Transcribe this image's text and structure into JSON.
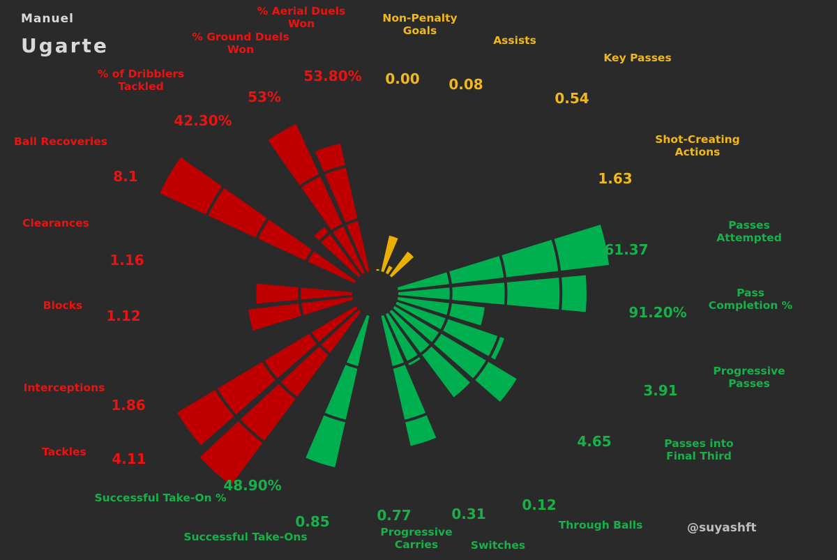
{
  "player": {
    "first_name": "Manuel",
    "last_name": "Ugarte"
  },
  "credit": "@suyashft",
  "colors": {
    "background": "#2a2a2a",
    "defending": "#c00000",
    "attacking": "#e8b000",
    "possession": "#00b050",
    "divider": "#2a2a2a"
  },
  "chart_data": {
    "type": "polar-bar",
    "note_values": "percentile-style radial extent 0-100 estimated from bar lengths; printed values are per-90 stats",
    "ylim": [
      0,
      100
    ],
    "grid": false,
    "series": [
      {
        "group": "defending",
        "color": "#c00000",
        "metrics": [
          {
            "name": "Tackles",
            "value_label": "4.11",
            "extent": 96
          },
          {
            "name": "Interceptions",
            "value_label": "1.86",
            "extent": 100
          },
          {
            "name": "Blocks",
            "value_label": "1.12",
            "extent": 45
          },
          {
            "name": "Clearances",
            "value_label": "1.16",
            "extent": 49
          },
          {
            "name": "Ball Recoveries",
            "value_label": "8.1",
            "extent": 99
          },
          {
            "name": "% of Dribblers\nTackled",
            "value_label": "42.30%",
            "extent": 29
          },
          {
            "name": "% Ground Duels\nWon",
            "value_label": "53%",
            "extent": 76
          },
          {
            "name": "% Aerial Duels\nWon",
            "value_label": "53.80%",
            "extent": 61
          }
        ]
      },
      {
        "group": "attacking",
        "color": "#e8b000",
        "metrics": [
          {
            "name": "Non-Penalty\nGoals",
            "value_label": "0.00",
            "extent": 2
          },
          {
            "name": "Assists",
            "value_label": "0.08",
            "extent": 18
          },
          {
            "name": "Key Passes",
            "value_label": "0.54",
            "extent": 5
          },
          {
            "name": "Shot-Creating\nActions",
            "value_label": "1.63",
            "extent": 15
          }
        ]
      },
      {
        "group": "possession",
        "color": "#00b050",
        "metrics": [
          {
            "name": "Passes\nAttempted",
            "value_label": "61.37",
            "extent": 98
          },
          {
            "name": "Pass\nCompletion %",
            "value_label": "91.20%",
            "extent": 87
          },
          {
            "name": "Progressive\nPasses",
            "value_label": "3.91",
            "extent": 41
          },
          {
            "name": "Passes into\nFinal Third",
            "value_label": "4.65",
            "extent": 53
          },
          {
            "name": "Through Balls",
            "value_label": "0.12",
            "extent": 66
          },
          {
            "name": "Switches",
            "value_label": "0.31",
            "extent": 50
          },
          {
            "name": "Progressive\nCarries",
            "value_label": "0.77",
            "extent": 27
          },
          {
            "name": "Successful Take-Ons",
            "value_label": "0.85",
            "extent": 62
          },
          {
            "name": "Successful Take-On %",
            "value_label": "48.90%",
            "extent": 72
          }
        ]
      }
    ]
  }
}
